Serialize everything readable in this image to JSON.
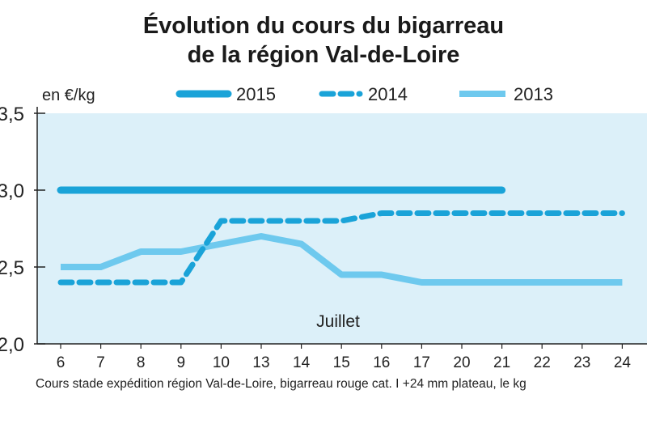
{
  "title_line1": "Évolution du cours du bigarreau",
  "title_line2": "de la région Val-de-Loire",
  "caption": "Cours stade expédition région Val-de-Loire, bigarreau rouge cat. I +24 mm plateau, le kg",
  "colors": {
    "plot_bg": "#dcf0f9",
    "s2015": "#1aa3d8",
    "s2014": "#1aa3d8",
    "s2013": "#6ec9ee",
    "axis": "#222222"
  },
  "chart_data": {
    "type": "line",
    "ylabel": "en €/kg",
    "ylim": [
      2.0,
      3.5
    ],
    "yticks": [
      "2,0",
      "2,5",
      "3,0",
      "3,5"
    ],
    "ytick_values": [
      2.0,
      2.5,
      3.0,
      3.5
    ],
    "categories": [
      "6",
      "7",
      "8",
      "9",
      "10",
      "13",
      "14",
      "15",
      "16",
      "17",
      "20",
      "21",
      "22",
      "23",
      "24"
    ],
    "annotation": "Juillet",
    "legend_position": "top",
    "series": [
      {
        "name": "2015",
        "style": "solid-thick",
        "values": [
          3.0,
          3.0,
          3.0,
          3.0,
          3.0,
          3.0,
          3.0,
          3.0,
          3.0,
          3.0,
          3.0,
          3.0,
          null,
          null,
          null
        ]
      },
      {
        "name": "2014",
        "style": "dashed",
        "values": [
          2.4,
          2.4,
          2.4,
          2.4,
          2.8,
          2.8,
          2.8,
          2.8,
          2.85,
          2.85,
          2.85,
          2.85,
          2.85,
          2.85,
          2.85
        ]
      },
      {
        "name": "2013",
        "style": "solid",
        "values": [
          2.5,
          2.5,
          2.6,
          2.6,
          2.65,
          2.7,
          2.65,
          2.45,
          2.45,
          2.4,
          2.4,
          2.4,
          2.4,
          2.4,
          2.4
        ]
      }
    ]
  }
}
